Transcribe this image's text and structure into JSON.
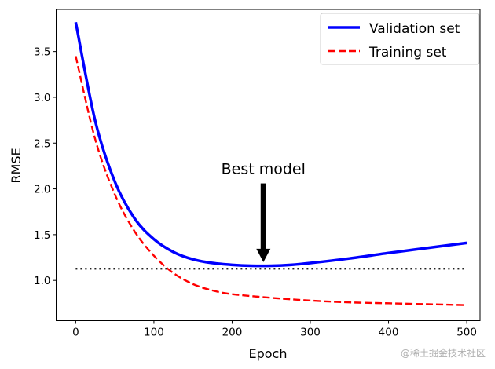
{
  "chart_data": {
    "type": "line",
    "title": "",
    "xlabel": "Epoch",
    "ylabel": "RMSE",
    "xlim": [
      -25,
      517
    ],
    "ylim": [
      0.56,
      3.96
    ],
    "xticks": [
      0,
      100,
      200,
      300,
      400,
      500
    ],
    "yticks": [
      1.0,
      1.5,
      2.0,
      2.5,
      3.0,
      3.5
    ],
    "ytick_labels": [
      "1.0",
      "1.5",
      "2.0",
      "2.5",
      "3.0",
      "3.5"
    ],
    "grid": false,
    "legend_position": "top-right",
    "series": [
      {
        "name": "Validation set",
        "color": "#0000ff",
        "style": "solid",
        "x": [
          0,
          25,
          50,
          75,
          100,
          125,
          150,
          175,
          200,
          225,
          250,
          275,
          300,
          350,
          400,
          450,
          500
        ],
        "y": [
          3.82,
          2.74,
          2.08,
          1.68,
          1.45,
          1.31,
          1.23,
          1.19,
          1.17,
          1.16,
          1.16,
          1.17,
          1.19,
          1.24,
          1.3,
          1.355,
          1.41
        ]
      },
      {
        "name": "Training set",
        "color": "#ff0000",
        "style": "dashed",
        "x": [
          0,
          25,
          50,
          75,
          100,
          125,
          150,
          175,
          200,
          250,
          300,
          350,
          400,
          450,
          500
        ],
        "y": [
          3.45,
          2.54,
          1.94,
          1.54,
          1.27,
          1.08,
          0.96,
          0.89,
          0.85,
          0.81,
          0.78,
          0.76,
          0.75,
          0.74,
          0.73
        ]
      }
    ],
    "reference_line": {
      "y": 1.128,
      "x_range": [
        0,
        500
      ],
      "style": "dotted",
      "color": "#000000"
    },
    "annotation": {
      "text": "Best model",
      "arrow_x": 240,
      "arrow_tip_y": 1.2,
      "arrow_tail_y": 2.06
    }
  },
  "watermark": "@稀土掘金技术社区"
}
